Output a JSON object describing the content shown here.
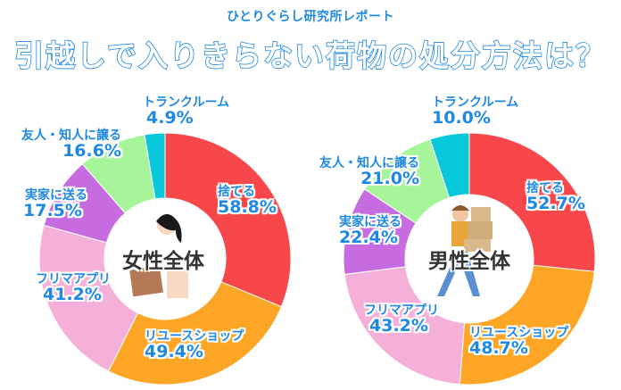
{
  "header": {
    "subtitle": "ひとりぐらし研究所レポート",
    "title": "引越しで入りきらない荷物の処分方法は？"
  },
  "colors": {
    "捨てる": "#f7474a",
    "リユースショップ": "#fda626",
    "フリマアプリ": "#f5b0da",
    "実家に送る": "#c76be0",
    "友人・知人に譲る": "#a6f59a",
    "トランクルーム": "#07c8db",
    "label_text": "#1e88e5"
  },
  "chart_data": [
    {
      "type": "pie",
      "variant": "donut",
      "title": "女性全体",
      "categories": [
        "捨てる",
        "リユースショップ",
        "フリマアプリ",
        "実家に送る",
        "友人・知人に譲る",
        "トランクルーム"
      ],
      "values": [
        58.8,
        49.4,
        41.2,
        17.5,
        16.6,
        4.9
      ],
      "labels": [
        "58.8%",
        "49.4%",
        "41.2%",
        "17.5%",
        "16.6%",
        "4.9%"
      ],
      "unit": "%"
    },
    {
      "type": "pie",
      "variant": "donut",
      "title": "男性全体",
      "categories": [
        "捨てる",
        "リユースショップ",
        "フリマアプリ",
        "実家に送る",
        "友人・知人に譲る",
        "トランクルーム"
      ],
      "values": [
        52.7,
        48.7,
        43.2,
        22.4,
        21.0,
        10.0
      ],
      "labels": [
        "52.7%",
        "48.7%",
        "43.2%",
        "22.4%",
        "21.0%",
        "10.0%"
      ],
      "unit": "%"
    }
  ]
}
